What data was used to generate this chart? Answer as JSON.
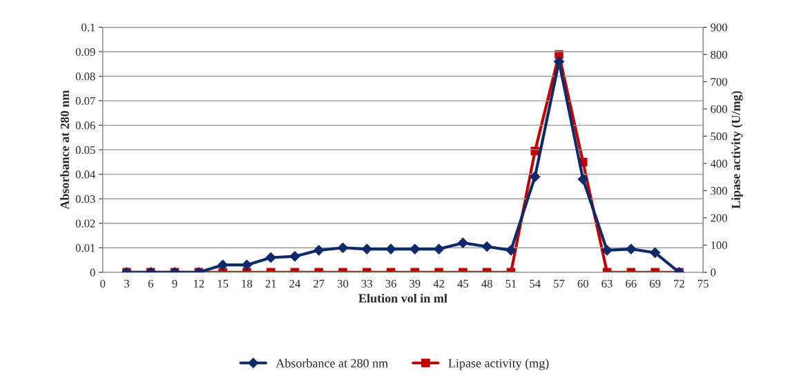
{
  "chart_data": {
    "type": "line",
    "xlabel": "Elution vol in ml",
    "ylabel": "Absorbance at 280 nm",
    "y2label": "Lipase activity (U/mg)",
    "x": [
      3,
      6,
      9,
      12,
      15,
      18,
      21,
      24,
      27,
      30,
      33,
      36,
      39,
      42,
      45,
      48,
      51,
      54,
      57,
      60,
      63,
      66,
      69,
      72
    ],
    "xlim": [
      0,
      75
    ],
    "xticks": [
      0,
      3,
      6,
      9,
      12,
      15,
      18,
      21,
      24,
      27,
      30,
      33,
      36,
      39,
      42,
      45,
      48,
      51,
      54,
      57,
      60,
      63,
      66,
      69,
      72,
      75
    ],
    "ylim": [
      0,
      0.1
    ],
    "yticks": [
      0,
      0.01,
      0.02,
      0.03,
      0.04,
      0.05,
      0.06,
      0.07,
      0.08,
      0.09,
      0.1
    ],
    "y2lim": [
      0,
      900
    ],
    "y2ticks": [
      0,
      100,
      200,
      300,
      400,
      500,
      600,
      700,
      800,
      900
    ],
    "grid": "y",
    "legend": "bottom",
    "series": [
      {
        "name": "Absorbance at 280 nm",
        "color": "#0f2a6b",
        "marker": "diamond",
        "values": [
          0,
          0,
          0,
          0,
          0.003,
          0.003,
          0.006,
          0.0065,
          0.009,
          0.01,
          0.0095,
          0.0095,
          0.0095,
          0.0095,
          0.012,
          0.0105,
          0.009,
          0.039,
          0.086,
          0.038,
          0.009,
          0.0095,
          0.008,
          0
        ]
      },
      {
        "name": "Lipase activity (mg)",
        "color": "#c00000",
        "marker": "square",
        "axis": "y2",
        "values": [
          0,
          0,
          0,
          0,
          0,
          0,
          0,
          0,
          0,
          0,
          0,
          0,
          0,
          0,
          0,
          0,
          0,
          445,
          800,
          405,
          0,
          0,
          0,
          0
        ]
      }
    ]
  }
}
